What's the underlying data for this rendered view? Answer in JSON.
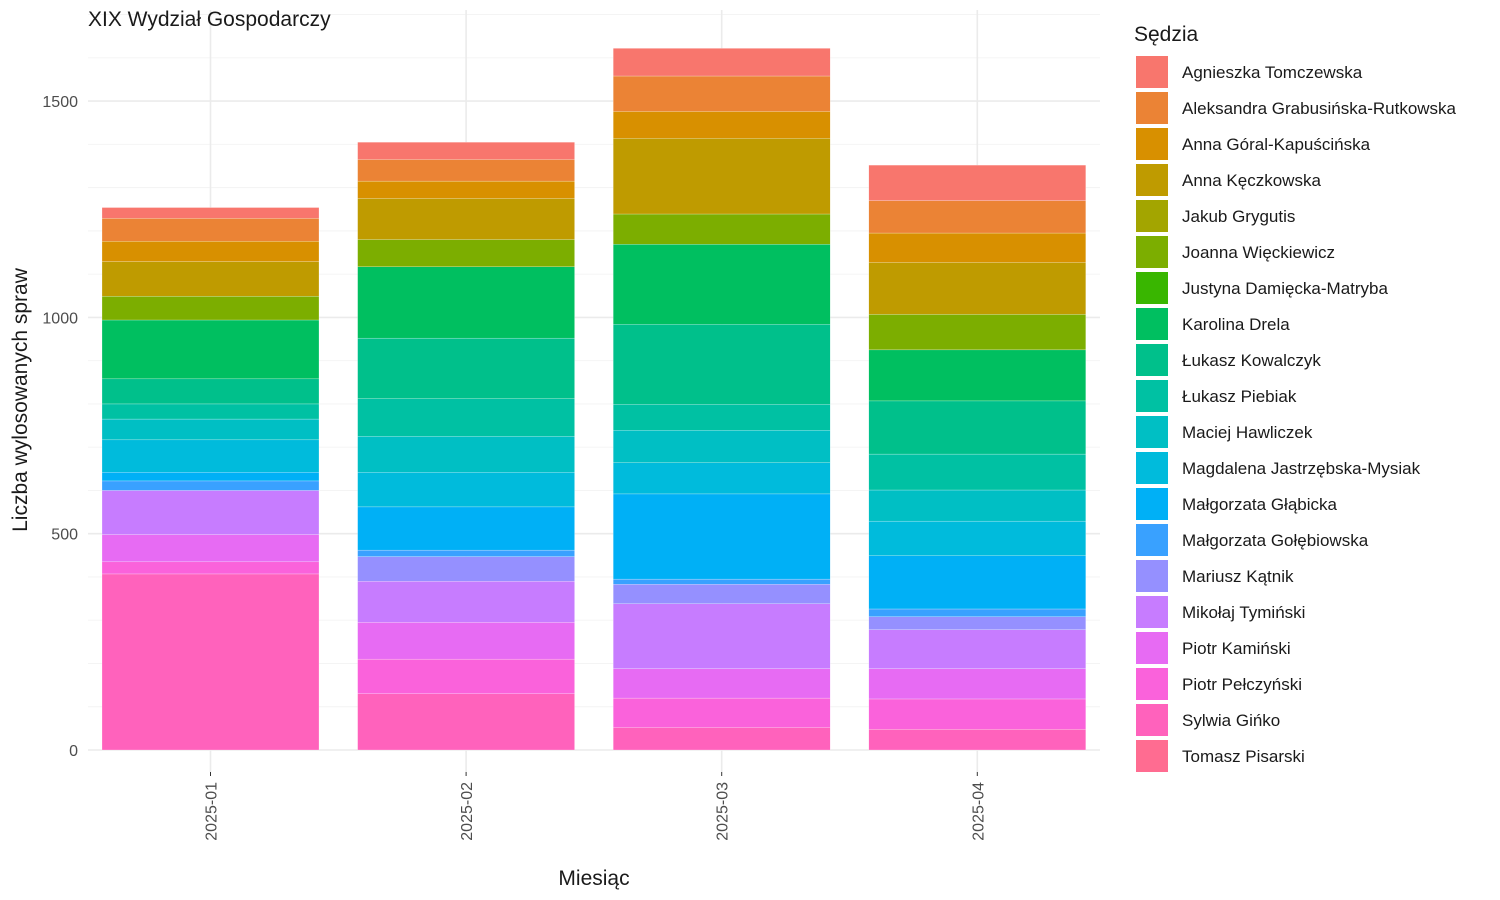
{
  "chart_data": {
    "type": "bar",
    "stacked": true,
    "title": "XIX Wydział Gospodarczy",
    "xlabel": "Miesiąc",
    "ylabel": "Liczba wylosowanych spraw",
    "ylim": [
      0,
      1700
    ],
    "yticks": [
      0,
      500,
      1000,
      1500
    ],
    "grid": true,
    "legend_position": "right",
    "legend_title": "Sędzia",
    "categories": [
      "2025-01",
      "2025-02",
      "2025-03",
      "2025-04"
    ],
    "series": [
      {
        "name": "Tomasz Pisarski",
        "color": "#FF6C91",
        "values": [
          0,
          0,
          0,
          0
        ]
      },
      {
        "name": "Sylwia Gińko",
        "color": "#FF62BC",
        "values": [
          407,
          130,
          52,
          48
        ]
      },
      {
        "name": "Piotr Pełczyński",
        "color": "#FA62DB",
        "values": [
          28,
          80,
          68,
          70
        ]
      },
      {
        "name": "Piotr Kamiński",
        "color": "#E76BF3",
        "values": [
          63,
          85,
          68,
          70
        ]
      },
      {
        "name": "Mikołaj Tymiński",
        "color": "#C77CFF",
        "values": [
          102,
          95,
          150,
          90
        ]
      },
      {
        "name": "Mariusz Kątnik",
        "color": "#9590FF",
        "values": [
          0,
          57,
          45,
          30
        ]
      },
      {
        "name": "Małgorzata Gołębiowska",
        "color": "#39A1FF",
        "values": [
          22,
          15,
          12,
          18
        ]
      },
      {
        "name": "Małgorzata Głąbicka",
        "color": "#00B0F6",
        "values": [
          20,
          100,
          197,
          123
        ]
      },
      {
        "name": "Magdalena Jastrzębska-Mysiak",
        "color": "#00BBDC",
        "values": [
          75,
          80,
          72,
          80
        ]
      },
      {
        "name": "Maciej Hawliczek",
        "color": "#00BFC4",
        "values": [
          48,
          83,
          75,
          72
        ]
      },
      {
        "name": "Łukasz Piebiak",
        "color": "#00C1A3",
        "values": [
          35,
          87,
          60,
          83
        ]
      },
      {
        "name": "Łukasz Kowalczyk",
        "color": "#00C08B",
        "values": [
          58,
          140,
          185,
          123
        ]
      },
      {
        "name": "Karolina Drela",
        "color": "#00BF60",
        "values": [
          136,
          165,
          185,
          118
        ]
      },
      {
        "name": "Justyna Damięcka-Matryba",
        "color": "#39B600",
        "values": [
          0,
          0,
          0,
          0
        ]
      },
      {
        "name": "Joanna Więckiewicz",
        "color": "#7CAE00",
        "values": [
          55,
          63,
          70,
          82
        ]
      },
      {
        "name": "Jakub Grygutis",
        "color": "#A3A500",
        "values": [
          0,
          0,
          0,
          0
        ]
      },
      {
        "name": "Anna Kęczkowska",
        "color": "#BF9B00",
        "values": [
          80,
          95,
          175,
          120
        ]
      },
      {
        "name": "Anna Góral-Kapuścińska",
        "color": "#D89000",
        "values": [
          47,
          40,
          62,
          68
        ]
      },
      {
        "name": "Aleksandra Grabusińska-Rutkowska",
        "color": "#EB8335",
        "values": [
          53,
          50,
          82,
          75
        ]
      },
      {
        "name": "Agnieszka Tomczewska",
        "color": "#F8766D",
        "values": [
          25,
          40,
          64,
          82
        ]
      }
    ],
    "legend_order": [
      "Agnieszka Tomczewska",
      "Aleksandra Grabusińska-Rutkowska",
      "Anna Góral-Kapuścińska",
      "Anna Kęczkowska",
      "Jakub Grygutis",
      "Joanna Więckiewicz",
      "Justyna Damięcka-Matryba",
      "Karolina Drela",
      "Łukasz Kowalczyk",
      "Łukasz Piebiak",
      "Maciej Hawliczek",
      "Magdalena Jastrzębska-Mysiak",
      "Małgorzata Głąbicka",
      "Małgorzata Gołębiowska",
      "Mariusz Kątnik",
      "Mikołaj Tymiński",
      "Piotr Kamiński",
      "Piotr Pełczyński",
      "Sylwia Gińko",
      "Tomasz Pisarski"
    ]
  }
}
